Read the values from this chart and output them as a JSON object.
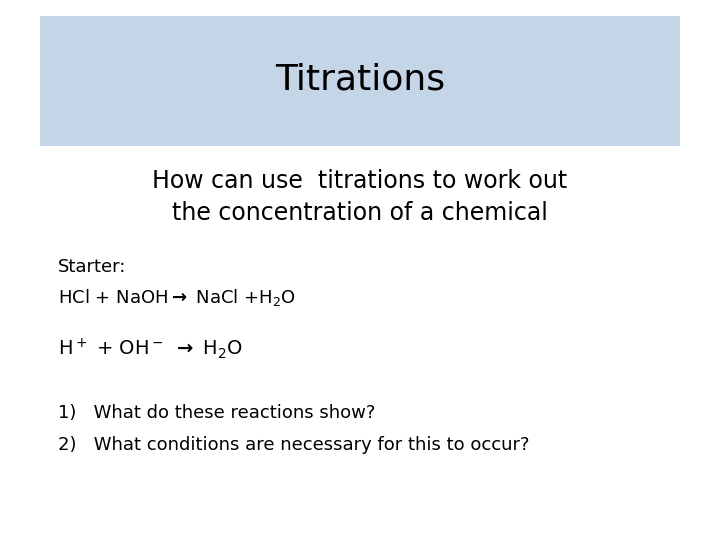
{
  "title": "Titrations",
  "title_box_color": "#c5d5e8",
  "background_color": "#ffffff",
  "subtitle_line1": "How can use  titrations to work out",
  "subtitle_line2": "the concentration of a chemical",
  "starter_label": "Starter:",
  "item1": "1)   What do these reactions show?",
  "item2": "2)   What conditions are necessary for this to occur?",
  "title_fontsize": 26,
  "subtitle_fontsize": 17,
  "body_fontsize": 13,
  "small_fontsize": 10,
  "title_box_color_hex": "#c5d5e8"
}
